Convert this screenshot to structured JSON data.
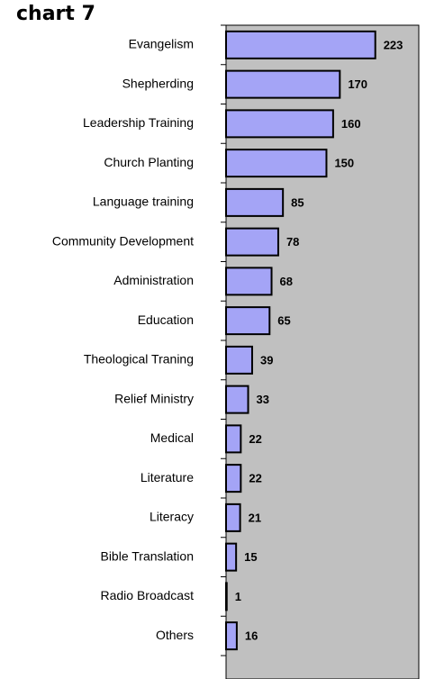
{
  "chart_data": {
    "type": "barh",
    "title": "chart 7",
    "categories": [
      "Evangelism",
      "Shepherding",
      "Leadership Training",
      "Church Planting",
      "Language training",
      "Community Development",
      "Administration",
      "Education",
      "Theological Traning",
      "Relief Ministry",
      "Medical",
      "Literature",
      "Literacy",
      "Bible Translation",
      "Radio Broadcast",
      "Others"
    ],
    "values": [
      223,
      170,
      160,
      150,
      85,
      78,
      68,
      65,
      39,
      33,
      22,
      22,
      21,
      15,
      1,
      16
    ],
    "color": "#a4a4f6",
    "background": "#c0c0c0",
    "xlim": [
      0,
      288
    ]
  }
}
